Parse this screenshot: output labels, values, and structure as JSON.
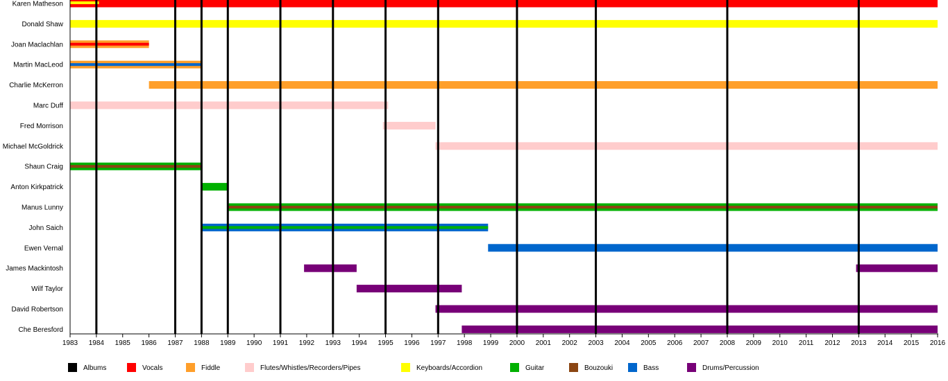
{
  "chart_data": {
    "type": "timeline",
    "title": "",
    "xlabel": "",
    "ylabel": "",
    "xlim": [
      1983,
      2016
    ],
    "x_ticks": [
      1983,
      1984,
      1985,
      1986,
      1987,
      1988,
      1989,
      1990,
      1991,
      1992,
      1993,
      1994,
      1995,
      1996,
      1997,
      1998,
      1999,
      2000,
      2001,
      2002,
      2003,
      2004,
      2005,
      2006,
      2007,
      2008,
      2009,
      2010,
      2011,
      2012,
      2013,
      2014,
      2015,
      2016
    ],
    "instruments": {
      "Albums": "#000000",
      "Vocals": "#ff0000",
      "Fiddle": "#ff9f2a",
      "Flutes/Whistles/Recorders/Pipes": "#ffcccc",
      "Keyboards/Accordion": "#ffff00",
      "Guitar": "#00b000",
      "Bouzouki": "#8b4513",
      "Bass": "#0066cc",
      "Drums/Percussion": "#770077"
    },
    "legend": [
      {
        "label": "Albums",
        "color": "#000000"
      },
      {
        "label": "Vocals",
        "color": "#ff0000"
      },
      {
        "label": "Fiddle",
        "color": "#ff9f2a"
      },
      {
        "label": "Flutes/Whistles/Recorders/Pipes",
        "color": "#ffcccc"
      },
      {
        "label": "Keyboards/Accordion",
        "color": "#ffff00"
      },
      {
        "label": "Guitar",
        "color": "#00b000"
      },
      {
        "label": "Bouzouki",
        "color": "#8b4513"
      },
      {
        "label": "Bass",
        "color": "#0066cc"
      },
      {
        "label": "Drums/Percussion",
        "color": "#770077"
      }
    ],
    "legend_position": "bottom",
    "albums": [
      1984,
      1987,
      1988,
      1989,
      1991,
      1993,
      1995,
      1997,
      2000,
      2003,
      2008,
      2013
    ],
    "members": [
      {
        "name": "Karen Matheson",
        "periods": [
          {
            "start": 1983,
            "end": 2016,
            "main": "Vocals"
          },
          {
            "start": 1983,
            "end": 1984.1,
            "main": "Vocals",
            "inner": "Keyboards/Accordion"
          }
        ]
      },
      {
        "name": "Donald Shaw",
        "periods": [
          {
            "start": 1983,
            "end": 2016,
            "main": "Keyboards/Accordion"
          }
        ]
      },
      {
        "name": "Joan Maclachlan",
        "periods": [
          {
            "start": 1983,
            "end": 1986,
            "main": "Fiddle",
            "inner": "Vocals"
          }
        ]
      },
      {
        "name": "Martin MacLeod",
        "periods": [
          {
            "start": 1983,
            "end": 1988,
            "main": "Fiddle",
            "inner": "Bass"
          }
        ]
      },
      {
        "name": "Charlie McKerron",
        "periods": [
          {
            "start": 1986,
            "end": 2016,
            "main": "Fiddle"
          }
        ]
      },
      {
        "name": "Marc Duff",
        "periods": [
          {
            "start": 1983,
            "end": 1995.1,
            "main": "Flutes/Whistles/Recorders/Pipes"
          }
        ]
      },
      {
        "name": "Fred Morrison",
        "periods": [
          {
            "start": 1994.9,
            "end": 1996.9,
            "main": "Flutes/Whistles/Recorders/Pipes"
          }
        ]
      },
      {
        "name": "Michael McGoldrick",
        "periods": [
          {
            "start": 1996.9,
            "end": 2016,
            "main": "Flutes/Whistles/Recorders/Pipes"
          }
        ]
      },
      {
        "name": "Shaun Craig",
        "periods": [
          {
            "start": 1983,
            "end": 1988,
            "main": "Guitar",
            "inner": "Bouzouki"
          }
        ]
      },
      {
        "name": "Anton Kirkpatrick",
        "periods": [
          {
            "start": 1988,
            "end": 1989,
            "main": "Guitar"
          }
        ]
      },
      {
        "name": "Manus Lunny",
        "periods": [
          {
            "start": 1989,
            "end": 2016,
            "main": "Guitar",
            "inner": "Bouzouki"
          }
        ]
      },
      {
        "name": "John Saich",
        "periods": [
          {
            "start": 1988,
            "end": 1998.9,
            "main": "Bass",
            "inner": "Guitar"
          }
        ]
      },
      {
        "name": "Ewen Vernal",
        "periods": [
          {
            "start": 1998.9,
            "end": 2016,
            "main": "Bass"
          }
        ]
      },
      {
        "name": "James Mackintosh",
        "periods": [
          {
            "start": 1991.9,
            "end": 1993.9,
            "main": "Drums/Percussion"
          },
          {
            "start": 2012.9,
            "end": 2016,
            "main": "Drums/Percussion"
          }
        ]
      },
      {
        "name": "Wilf Taylor",
        "periods": [
          {
            "start": 1993.9,
            "end": 1997.9,
            "main": "Drums/Percussion"
          }
        ]
      },
      {
        "name": "David Robertson",
        "periods": [
          {
            "start": 1996.9,
            "end": 2016,
            "main": "Drums/Percussion"
          }
        ]
      },
      {
        "name": "Che Beresford",
        "periods": [
          {
            "start": 1997.9,
            "end": 2016,
            "main": "Drums/Percussion"
          }
        ]
      }
    ]
  }
}
